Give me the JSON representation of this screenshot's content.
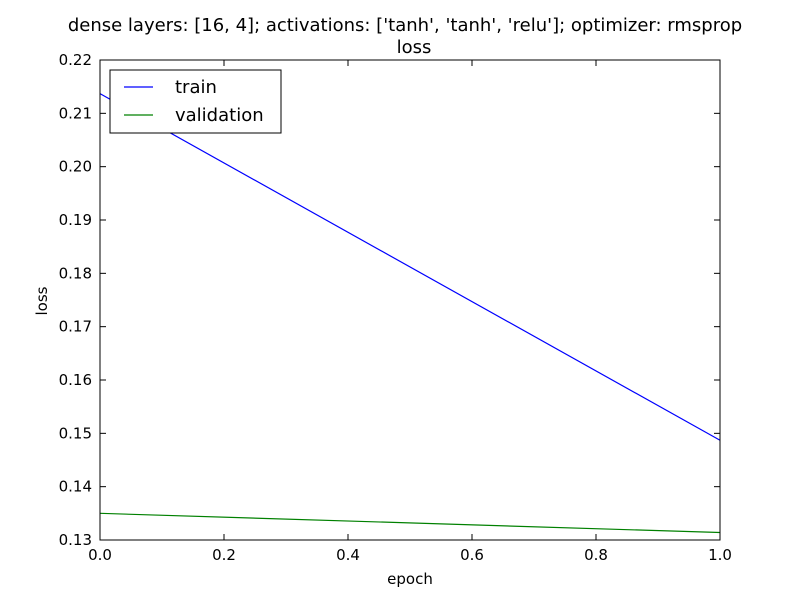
{
  "chart_data": {
    "type": "line",
    "title": "dense layers: [16, 4]; activations: ['tanh', 'tanh', 'relu']; optimizer: rmsprop",
    "subtitle": "loss",
    "xlabel": "epoch",
    "ylabel": "loss",
    "xlim": [
      0.0,
      1.0
    ],
    "ylim": [
      0.13,
      0.22
    ],
    "xticks": [
      0.0,
      0.2,
      0.4,
      0.6,
      0.8,
      1.0
    ],
    "xtick_labels": [
      "0.0",
      "0.2",
      "0.4",
      "0.6",
      "0.8",
      "1.0"
    ],
    "yticks": [
      0.13,
      0.14,
      0.15,
      0.16,
      0.17,
      0.18,
      0.19,
      0.2,
      0.21,
      0.22
    ],
    "ytick_labels": [
      "0.13",
      "0.14",
      "0.15",
      "0.16",
      "0.17",
      "0.18",
      "0.19",
      "0.20",
      "0.21",
      "0.22"
    ],
    "grid": false,
    "legend_position": "top-left",
    "x": [
      0,
      1
    ],
    "series": [
      {
        "name": "train",
        "color": "#0000ff",
        "values": [
          0.2137,
          0.1487
        ]
      },
      {
        "name": "validation",
        "color": "#008000",
        "values": [
          0.135,
          0.1314
        ]
      }
    ]
  }
}
